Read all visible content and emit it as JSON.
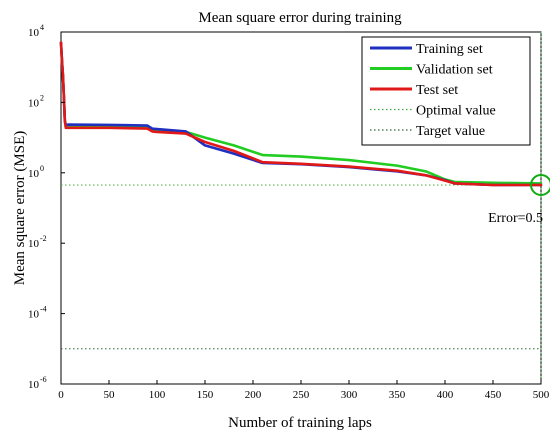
{
  "chart_data": {
    "type": "line",
    "title": "Mean square error during training",
    "xlabel": "Number of training laps",
    "ylabel": "Mean square error (MSE)",
    "xlim": [
      0,
      500
    ],
    "ylim_log10": [
      -6,
      4
    ],
    "yscale": "log",
    "x_ticks": [
      0,
      50,
      100,
      150,
      200,
      250,
      300,
      350,
      400,
      450,
      500
    ],
    "y_ticks": [
      {
        "base": "10",
        "exp": "4",
        "value": 10000
      },
      {
        "base": "10",
        "exp": "2",
        "value": 100
      },
      {
        "base": "10",
        "exp": "0",
        "value": 1
      },
      {
        "base": "10",
        "exp": "-2",
        "value": 0.01
      },
      {
        "base": "10",
        "exp": "-4",
        "value": 0.0001
      },
      {
        "base": "10",
        "exp": "-6",
        "value": 1e-06
      }
    ],
    "grid": false,
    "legend_position": "top-right",
    "series": [
      {
        "name": "Training set",
        "color": "#1f2fbf",
        "style": "solid",
        "points": [
          [
            0,
            5000
          ],
          [
            1,
            1500
          ],
          [
            2,
            600
          ],
          [
            3,
            150
          ],
          [
            4,
            30
          ],
          [
            5,
            23
          ],
          [
            8,
            23.5
          ],
          [
            50,
            23
          ],
          [
            90,
            22
          ],
          [
            95,
            18
          ],
          [
            100,
            17.5
          ],
          [
            130,
            15
          ],
          [
            150,
            6
          ],
          [
            180,
            3.5
          ],
          [
            210,
            1.9
          ],
          [
            250,
            1.75
          ],
          [
            300,
            1.45
          ],
          [
            350,
            1.1
          ],
          [
            380,
            0.85
          ],
          [
            400,
            0.62
          ],
          [
            410,
            0.5
          ],
          [
            450,
            0.45
          ],
          [
            500,
            0.45
          ]
        ]
      },
      {
        "name": "Validation set",
        "color": "#22cc22",
        "style": "solid",
        "points": [
          [
            0,
            5000
          ],
          [
            1,
            1500
          ],
          [
            2,
            600
          ],
          [
            3,
            150
          ],
          [
            4,
            30
          ],
          [
            5,
            21
          ],
          [
            8,
            21
          ],
          [
            50,
            20.5
          ],
          [
            90,
            19.5
          ],
          [
            95,
            16
          ],
          [
            100,
            15.5
          ],
          [
            130,
            14.5
          ],
          [
            150,
            10
          ],
          [
            180,
            6
          ],
          [
            210,
            3.2
          ],
          [
            250,
            2.9
          ],
          [
            300,
            2.3
          ],
          [
            350,
            1.6
          ],
          [
            380,
            1.1
          ],
          [
            400,
            0.65
          ],
          [
            410,
            0.55
          ],
          [
            450,
            0.52
          ],
          [
            500,
            0.5
          ]
        ]
      },
      {
        "name": "Test set",
        "color": "#e01818",
        "style": "solid",
        "points": [
          [
            0,
            5000
          ],
          [
            1,
            1500
          ],
          [
            2,
            600
          ],
          [
            3,
            150
          ],
          [
            4,
            30
          ],
          [
            5,
            19
          ],
          [
            8,
            19
          ],
          [
            50,
            19
          ],
          [
            90,
            18
          ],
          [
            95,
            15
          ],
          [
            100,
            14.5
          ],
          [
            130,
            13
          ],
          [
            150,
            7.5
          ],
          [
            180,
            4.2
          ],
          [
            210,
            2.0
          ],
          [
            250,
            1.8
          ],
          [
            300,
            1.5
          ],
          [
            350,
            1.15
          ],
          [
            380,
            0.85
          ],
          [
            400,
            0.6
          ],
          [
            410,
            0.5
          ],
          [
            450,
            0.45
          ],
          [
            500,
            0.45
          ]
        ]
      }
    ],
    "reference_lines": [
      {
        "name": "Optimal value",
        "color": "#44aa44",
        "style": "dotted",
        "axis": "x",
        "value": 500
      },
      {
        "name": "Optimal value",
        "color": "#44aa44",
        "style": "dotted",
        "axis": "y",
        "value": 0.45
      },
      {
        "name": "Target value",
        "color": "#336633",
        "style": "dotted",
        "axis": "y",
        "value": 1e-05
      }
    ],
    "legend": [
      {
        "label": "Training set",
        "color": "#1f2fbf",
        "style": "solid"
      },
      {
        "label": "Validation set",
        "color": "#22cc22",
        "style": "solid"
      },
      {
        "label": "Test set",
        "color": "#e01818",
        "style": "solid"
      },
      {
        "label": "Optimal value",
        "color": "#44aa44",
        "style": "dotted"
      },
      {
        "label": "Target value",
        "color": "#336633",
        "style": "dotted"
      }
    ],
    "annotation": {
      "text": "Error=0.5",
      "x": 500,
      "y": 0.45,
      "marker": "circle",
      "marker_color": "#11aa11"
    }
  }
}
